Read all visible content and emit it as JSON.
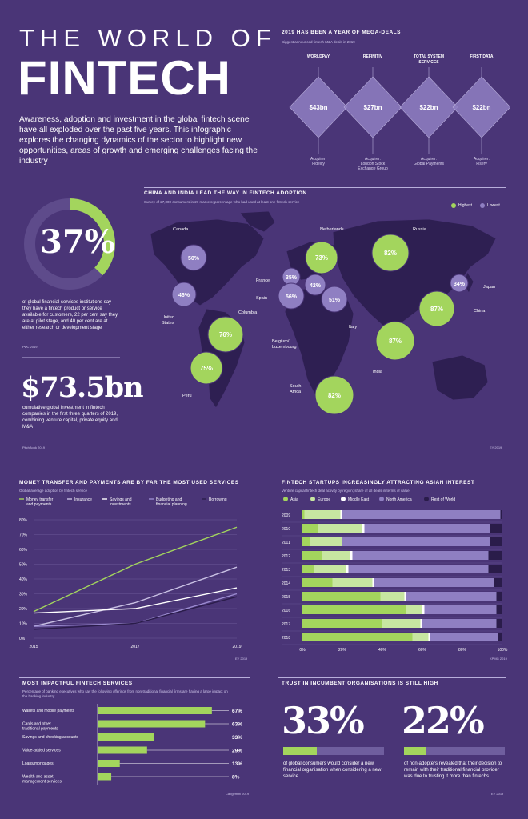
{
  "header": {
    "title_line1": "THE WORLD OF",
    "title_line2": "FINTECH",
    "intro": "Awareness, adoption and investment in the global fintech scene have all exploded over the past five years. This infographic explores the changing dynamics of the sector to highlight new opportunities, areas of growth and emerging challenges facing the industry"
  },
  "megadeals": {
    "title": "2019 HAS BEEN A YEAR OF MEGA-DEALS",
    "subtitle": "Biggest announced fintech M&A deals in 2019",
    "deals": [
      {
        "company": "WORLDPAY",
        "value": "$43bn",
        "acquirer": "Acquirer:\nFidelity"
      },
      {
        "company": "REFINITIV",
        "value": "$27bn",
        "acquirer": "Acquirer:\nLondon Stock\nExchange Group"
      },
      {
        "company": "TOTAL SYSTEM\nSERVICES",
        "value": "$22bn",
        "acquirer": "Acquirer:\nGlobal Payments"
      },
      {
        "company": "FIRST DATA",
        "value": "$22bn",
        "acquirer": "Acquirer:\nFiserv"
      }
    ]
  },
  "stat37": {
    "value": "37%",
    "text": "of global financial services institutions say they have a fintech product or service available for customers, 22 per cent say they are at pilot stage, and 40 per cent are at either research or development stage",
    "source": "PwC 2019",
    "fill_fraction": 0.37,
    "colors": {
      "fill": "#a3d55d",
      "track": "#5e4b8b"
    }
  },
  "stat735": {
    "value": "$73.5bn",
    "text": "cumulative global investment in fintech companies in the first three quarters of 2019, combining venture capital, private equity and M&A",
    "source": "PitchBook 2019"
  },
  "map": {
    "title": "CHINA AND INDIA LEAD THE WAY IN FINTECH ADOPTION",
    "subtitle": "Survey of 27,000 consumers in 27 markets; percentage who had used at least one fintech service",
    "legend": [
      {
        "label": "Highest",
        "color": "#a3d55d"
      },
      {
        "label": "Lowest",
        "color": "#8f7fc2"
      }
    ],
    "source": "EY 2019",
    "bubbles": [
      {
        "country": "Canada",
        "value": "50%",
        "level": "lowest"
      },
      {
        "country": "United\nStates",
        "value": "46%",
        "level": "lowest"
      },
      {
        "country": "Columbia",
        "value": "76%",
        "level": "highest"
      },
      {
        "country": "Peru",
        "value": "75%",
        "level": "highest"
      },
      {
        "country": "France",
        "value": "35%",
        "level": "lowest"
      },
      {
        "country": "Spain",
        "value": "56%",
        "level": "lowest"
      },
      {
        "country": "Netherlands",
        "value": "73%",
        "level": "highest"
      },
      {
        "country": "Belgium/\nLuxembourg",
        "value": "42%",
        "level": "lowest"
      },
      {
        "country": "Italy",
        "value": "51%",
        "level": "lowest"
      },
      {
        "country": "Russia",
        "value": "82%",
        "level": "highest"
      },
      {
        "country": "Japan",
        "value": "34%",
        "level": "lowest"
      },
      {
        "country": "China",
        "value": "87%",
        "level": "highest"
      },
      {
        "country": "India",
        "value": "87%",
        "level": "highest"
      },
      {
        "country": "South\nAfrica",
        "value": "82%",
        "level": "highest"
      }
    ]
  },
  "chart_data": [
    {
      "type": "line",
      "title": "MONEY TRANSFER AND PAYMENTS ARE BY FAR THE MOST USED SERVICES",
      "subtitle": "Global average adoption by fintech service",
      "source": "EY 2019",
      "x": [
        "2015",
        "2017",
        "2019"
      ],
      "ylim": [
        0,
        80
      ],
      "yticks": [
        "0%",
        "10%",
        "20%",
        "30%",
        "40%",
        "50%",
        "60%",
        "70%",
        "80%"
      ],
      "series": [
        {
          "name": "Money transfer\nand payments",
          "color": "#a3d55d",
          "values": [
            18,
            50,
            75
          ]
        },
        {
          "name": "Insurance",
          "color": "#c9c1e4",
          "values": [
            8,
            24,
            48
          ]
        },
        {
          "name": "Savings and\ninvestments",
          "color": "#ffffff",
          "values": [
            17,
            20,
            34
          ]
        },
        {
          "name": "Budgeting and\nfinancial planning",
          "color": "#9b8bd0",
          "values": [
            8,
            10,
            30
          ]
        },
        {
          "name": "Borrowing",
          "color": "#2a1c4a",
          "values": [
            6,
            10,
            28
          ]
        }
      ]
    },
    {
      "type": "bar",
      "stacked": true,
      "title": "FINTECH STARTUPS INCREASINGLY ATTRACTING ASIAN INTEREST",
      "subtitle": "Venture capital fintech deal activity by region; share of all deals in terms of value",
      "source": "KPMG 2019",
      "categories": [
        "2009",
        "2010",
        "2011",
        "2012",
        "2013",
        "2014",
        "2015",
        "2016",
        "2017",
        "2018"
      ],
      "xticks": [
        "0%",
        "20%",
        "40%",
        "60%",
        "80%",
        "100%"
      ],
      "series": [
        {
          "name": "Asia",
          "color": "#a3d55d",
          "values": [
            1,
            8,
            4,
            10,
            6,
            15,
            39,
            52,
            40,
            55
          ]
        },
        {
          "name": "Europe",
          "color": "#c7e6a1",
          "values": [
            18,
            22,
            16,
            14,
            16,
            20,
            12,
            8,
            19,
            8
          ]
        },
        {
          "name": "Middle East",
          "color": "#ffffff",
          "values": [
            1,
            1,
            0,
            1,
            1,
            1,
            1,
            1,
            1,
            1
          ]
        },
        {
          "name": "North America",
          "color": "#8f7fc2",
          "values": [
            79,
            63,
            74,
            68,
            70,
            60,
            45,
            36,
            37,
            34
          ]
        },
        {
          "name": "Rest of World",
          "color": "#2a1c4a",
          "values": [
            1,
            6,
            6,
            7,
            7,
            4,
            3,
            3,
            3,
            2
          ]
        }
      ]
    },
    {
      "type": "bar",
      "orientation": "horizontal",
      "title": "MOST IMPACTFUL FINTECH SERVICES",
      "subtitle": "Percentage of banking executives who say the following offerings from non-traditional financial firms are having a large impact on the banking industry",
      "source": "Capgemini 2019",
      "categories": [
        "Wallets and mobile payments",
        "Cards and other\ntraditional payments",
        "Savings and checking accounts",
        "Value-added services",
        "Loans/mortgages",
        "Wealth and asset\nmanagement services"
      ],
      "values": [
        67,
        63,
        33,
        29,
        13,
        8
      ],
      "labels": [
        "67%",
        "63%",
        "33%",
        "29%",
        "13%",
        "8%"
      ],
      "color": "#a3d55d"
    }
  ],
  "trust": {
    "title": "TRUST IN INCUMBENT ORGANISATIONS IS STILL HIGH",
    "source": "EY 2019",
    "stats": [
      {
        "value": "33%",
        "fraction": 0.33,
        "text": "of global consumers would consider a new financial organisation when considering a new service"
      },
      {
        "value": "22%",
        "fraction": 0.22,
        "text": "of non-adopters revealed that their decision to remain with their traditional financial provider was due to trusting it more than fintechs"
      }
    ]
  }
}
